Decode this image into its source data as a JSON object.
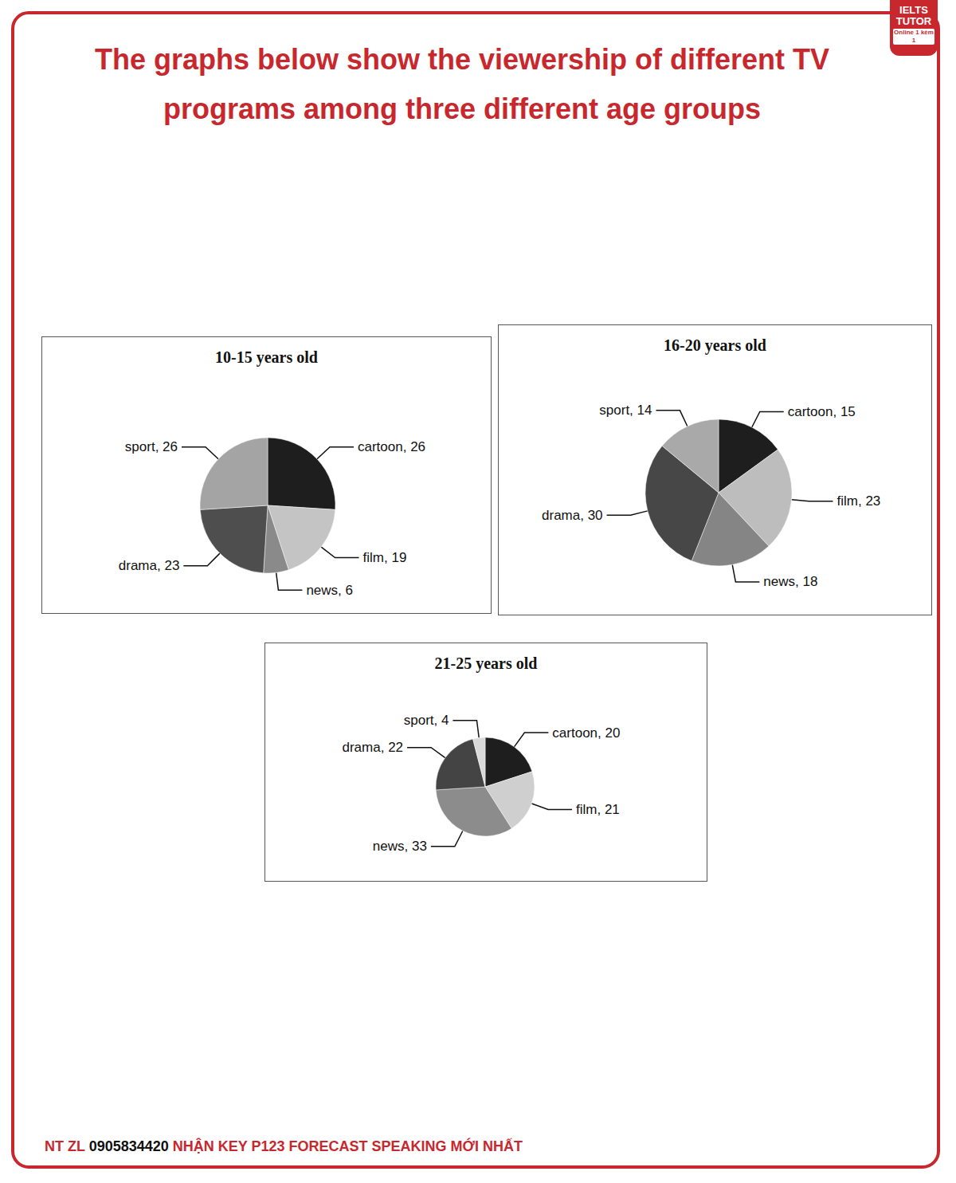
{
  "header": {
    "title": "The graphs below show the viewership of different TV programs among three different age groups",
    "logo": [
      "IELTS",
      "TUTOR",
      "Online 1 kèm 1"
    ]
  },
  "chart_data": [
    {
      "type": "pie",
      "title": "10-15 years old",
      "categories": [
        "cartoon",
        "film",
        "news",
        "drama",
        "sport"
      ],
      "values": [
        26,
        19,
        6,
        23,
        26
      ],
      "value_labels": [
        "cartoon, 26",
        "film, 19",
        "news, 6",
        "drama, 23",
        "sport, 26"
      ],
      "colors": [
        "#1e1e1e",
        "#c4c4c4",
        "#8a8a8a",
        "#4e4e4e",
        "#a4a4a4"
      ],
      "data_labels": true
    },
    {
      "type": "pie",
      "title": "16-20 years old",
      "categories": [
        "cartoon",
        "film",
        "news",
        "drama",
        "sport"
      ],
      "values": [
        15,
        23,
        18,
        30,
        14
      ],
      "value_labels": [
        "cartoon, 15",
        "film, 23",
        "news, 18",
        "drama, 30",
        "sport, 14"
      ],
      "colors": [
        "#1e1e1e",
        "#bdbdbd",
        "#858585",
        "#474747",
        "#a9a9a9"
      ],
      "data_labels": true
    },
    {
      "type": "pie",
      "title": "21-25 years old",
      "categories": [
        "cartoon",
        "film",
        "news",
        "drama",
        "sport"
      ],
      "values": [
        20,
        21,
        33,
        22,
        4
      ],
      "value_labels": [
        "cartoon, 20",
        "film, 21",
        "news, 33",
        "drama, 22",
        "sport, 4"
      ],
      "colors": [
        "#1e1e1e",
        "#cfcfcf",
        "#8c8c8c",
        "#444444",
        "#d9d9d9"
      ],
      "data_labels": true
    }
  ],
  "footer": [
    "NT ZL",
    "0905834420",
    "NHẬN KEY P123 FORECAST SPEAKING MỚI NHẤT"
  ]
}
